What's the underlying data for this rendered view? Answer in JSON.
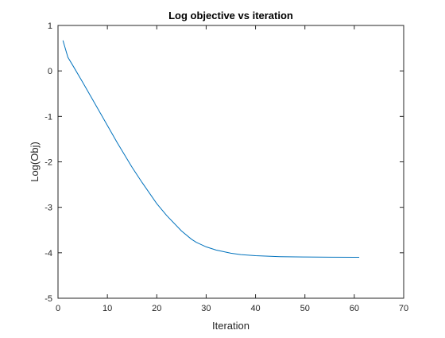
{
  "chart_data": {
    "type": "line",
    "title": "Log objective vs iteration",
    "xlabel": "Iteration",
    "ylabel": "Log(Obj)",
    "xlim": [
      0,
      70
    ],
    "ylim": [
      -5,
      1
    ],
    "xticks": [
      0,
      10,
      20,
      30,
      40,
      50,
      60,
      70
    ],
    "yticks": [
      -5,
      -4,
      -3,
      -2,
      -1,
      0,
      1
    ],
    "grid": false,
    "legend": "none",
    "colors": {
      "series": "#0072bd",
      "axes": "#262626",
      "background": "#ffffff"
    },
    "series": [
      {
        "x": [
          1,
          2,
          3,
          5,
          7,
          10,
          12,
          15,
          17,
          20,
          22,
          25,
          27,
          28,
          30,
          32,
          35,
          37,
          40,
          45,
          50,
          55,
          60,
          61
        ],
        "y": [
          0.67,
          0.3,
          0.12,
          -0.25,
          -0.63,
          -1.2,
          -1.58,
          -2.12,
          -2.45,
          -2.92,
          -3.18,
          -3.52,
          -3.7,
          -3.77,
          -3.87,
          -3.94,
          -4.01,
          -4.04,
          -4.065,
          -4.085,
          -4.093,
          -4.097,
          -4.1,
          -4.1
        ]
      }
    ]
  }
}
